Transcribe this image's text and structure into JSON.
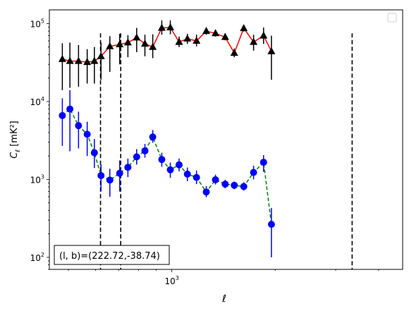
{
  "chart_data": {
    "type": "scatter",
    "x_scale": "log",
    "y_scale": "log",
    "xlim": [
      440,
      4700
    ],
    "ylim": [
      70,
      150000
    ],
    "xlabel": "ℓ",
    "ylabel_main": "C",
    "ylabel_sub": "ℓ",
    "ylabel_unit": "[mK²]",
    "x_tick_labels": [
      {
        "value": 1000,
        "mantissa": "10",
        "exp": "3"
      }
    ],
    "y_tick_labels": [
      {
        "value": 100,
        "mantissa": "10",
        "exp": "2"
      },
      {
        "value": 1000,
        "mantissa": "10",
        "exp": "3"
      },
      {
        "value": 10000,
        "mantissa": "10",
        "exp": "4"
      },
      {
        "value": 100000,
        "mantissa": "10",
        "exp": "5"
      }
    ],
    "annotation": "(l, b)=(222.72,-38.74)",
    "legend": "empty box, top-right",
    "vlines": [
      620,
      710,
      3350
    ],
    "vline_style": "black dashed",
    "series": [
      {
        "marker": "triangle",
        "color": "#000000",
        "line_color": "#ff0000",
        "line_style": "solid",
        "points": [
          {
            "x": 480,
            "y": 35000,
            "lo": 14000,
            "hi": 56000
          },
          {
            "x": 505,
            "y": 33000,
            "lo": 15000,
            "hi": 57000
          },
          {
            "x": 535,
            "y": 33000,
            "lo": 15500,
            "hi": 53000
          },
          {
            "x": 567,
            "y": 32000,
            "lo": 17000,
            "hi": 47000
          },
          {
            "x": 595,
            "y": 33000,
            "lo": 17000,
            "hi": 50000
          },
          {
            "x": 622,
            "y": 38000,
            "lo": 19000,
            "hi": 57000
          },
          {
            "x": 660,
            "y": 51000,
            "lo": 24000,
            "hi": 69000
          },
          {
            "x": 705,
            "y": 54000,
            "lo": 30000,
            "hi": 74000
          },
          {
            "x": 745,
            "y": 57000,
            "lo": 37000,
            "hi": 71000
          },
          {
            "x": 790,
            "y": 66000,
            "lo": 43000,
            "hi": 88000
          },
          {
            "x": 835,
            "y": 55000,
            "lo": 38000,
            "hi": 72000
          },
          {
            "x": 880,
            "y": 50000,
            "lo": 36000,
            "hi": 73000
          },
          {
            "x": 935,
            "y": 88000,
            "lo": 72000,
            "hi": 110000
          },
          {
            "x": 990,
            "y": 89000,
            "lo": 73000,
            "hi": 110000
          },
          {
            "x": 1050,
            "y": 58000,
            "lo": 50000,
            "hi": 68000
          },
          {
            "x": 1110,
            "y": 64000,
            "lo": 55000,
            "hi": 74000
          },
          {
            "x": 1180,
            "y": 60000,
            "lo": 51000,
            "hi": 72000
          },
          {
            "x": 1260,
            "y": 80000,
            "lo": 72000,
            "hi": 89000
          },
          {
            "x": 1340,
            "y": 75000,
            "lo": 68000,
            "hi": 83000
          },
          {
            "x": 1430,
            "y": 67000,
            "lo": 61000,
            "hi": 75000
          },
          {
            "x": 1520,
            "y": 42000,
            "lo": 37000,
            "hi": 48000
          },
          {
            "x": 1620,
            "y": 87000,
            "lo": 79000,
            "hi": 96000
          },
          {
            "x": 1730,
            "y": 58000,
            "lo": 45000,
            "hi": 72000
          },
          {
            "x": 1850,
            "y": 70000,
            "lo": 55000,
            "hi": 89000
          },
          {
            "x": 1950,
            "y": 44000,
            "lo": 19000,
            "hi": 70000
          }
        ]
      },
      {
        "marker": "circle",
        "color": "#0000ff",
        "line_color": "#008000",
        "line_style": "dashed",
        "points": [
          {
            "x": 480,
            "y": 6600,
            "lo": 2700,
            "hi": 11000
          },
          {
            "x": 505,
            "y": 8000,
            "lo": 2300,
            "hi": 14000
          },
          {
            "x": 535,
            "y": 4900,
            "lo": 2500,
            "hi": 7400
          },
          {
            "x": 567,
            "y": 3800,
            "lo": 2000,
            "hi": 5500
          },
          {
            "x": 595,
            "y": 2200,
            "lo": 1400,
            "hi": 3300
          },
          {
            "x": 622,
            "y": 1120,
            "lo": 700,
            "hi": 1550
          },
          {
            "x": 660,
            "y": 980,
            "lo": 600,
            "hi": 1370
          },
          {
            "x": 705,
            "y": 1200,
            "lo": 700,
            "hi": 1750
          },
          {
            "x": 745,
            "y": 1430,
            "lo": 1070,
            "hi": 1850
          },
          {
            "x": 790,
            "y": 1950,
            "lo": 1550,
            "hi": 2450
          },
          {
            "x": 835,
            "y": 2330,
            "lo": 1900,
            "hi": 2850
          },
          {
            "x": 880,
            "y": 3500,
            "lo": 2950,
            "hi": 4300
          },
          {
            "x": 935,
            "y": 1800,
            "lo": 1450,
            "hi": 2200
          },
          {
            "x": 990,
            "y": 1330,
            "lo": 1050,
            "hi": 1650
          },
          {
            "x": 1050,
            "y": 1540,
            "lo": 1270,
            "hi": 1850
          },
          {
            "x": 1110,
            "y": 1170,
            "lo": 950,
            "hi": 1420
          },
          {
            "x": 1180,
            "y": 1060,
            "lo": 870,
            "hi": 1300
          },
          {
            "x": 1260,
            "y": 690,
            "lo": 590,
            "hi": 820
          },
          {
            "x": 1340,
            "y": 990,
            "lo": 860,
            "hi": 1150
          },
          {
            "x": 1430,
            "y": 870,
            "lo": 770,
            "hi": 990
          },
          {
            "x": 1520,
            "y": 840,
            "lo": 750,
            "hi": 940
          },
          {
            "x": 1620,
            "y": 810,
            "lo": 720,
            "hi": 920
          },
          {
            "x": 1730,
            "y": 1230,
            "lo": 1000,
            "hi": 1500
          },
          {
            "x": 1850,
            "y": 1660,
            "lo": 1250,
            "hi": 2050
          },
          {
            "x": 1950,
            "y": 265,
            "lo": 100,
            "hi": 430
          }
        ]
      }
    ]
  }
}
